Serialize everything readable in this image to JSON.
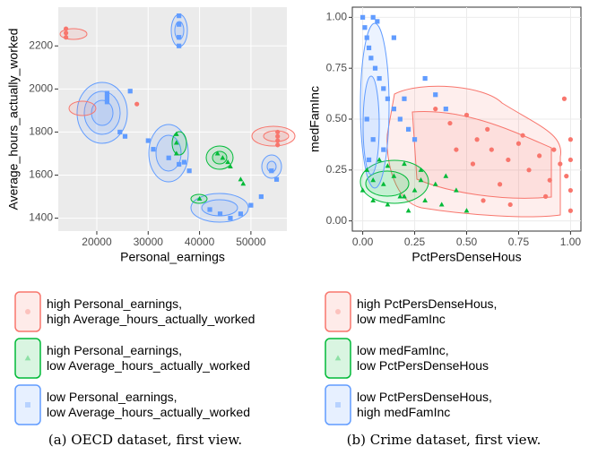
{
  "chart_data": [
    {
      "type": "scatter",
      "xlabel": "Personal_earnings",
      "ylabel": "Average_hours_actually_worked",
      "caption": "(a) OECD dataset, first view.",
      "background": "#ebebeb",
      "grid_color": "#ffffff",
      "grid": true,
      "xlim": [
        12500,
        57000
      ],
      "xticks": [
        20000,
        30000,
        40000,
        50000
      ],
      "ylim": [
        1340,
        2380
      ],
      "yticks": [
        1400,
        1600,
        1800,
        2000,
        2200
      ],
      "series": [
        {
          "name": "high Personal_earnings,\nhigh Average_hours_actually_worked",
          "color": "#f8766d",
          "marker": "circle",
          "x": [
            14000,
            14000,
            14000,
            27800,
            55200,
            55200,
            55200,
            55200
          ],
          "y": [
            2280,
            2260,
            2240,
            1930,
            1800,
            1780,
            1760,
            1740
          ]
        },
        {
          "name": "high Personal_earnings,\nlow Average_hours_actually_worked",
          "color": "#00ba38",
          "marker": "triangle",
          "x": [
            35500,
            35500,
            35500,
            43500,
            44500,
            45500,
            46000,
            48000,
            48500,
            40000
          ],
          "y": [
            1790,
            1750,
            1700,
            1700,
            1680,
            1660,
            1640,
            1580,
            1560,
            1490
          ]
        },
        {
          "name": "low Personal_earnings,\nlow Average_hours_actually_worked",
          "color": "#619cff",
          "marker": "square",
          "x": [
            36000,
            36000,
            36000,
            36000,
            22000,
            22000,
            22000,
            24500,
            25500,
            26500,
            31000,
            34000,
            36000,
            38000,
            42000,
            44000,
            46000,
            48000,
            50000,
            52000,
            54000,
            55000,
            37000,
            30000
          ],
          "y": [
            2340,
            2300,
            2240,
            2200,
            1980,
            1960,
            1940,
            1800,
            1780,
            1990,
            1720,
            1680,
            1650,
            1620,
            1440,
            1420,
            1400,
            1420,
            1460,
            1500,
            1620,
            1580,
            1660,
            1760
          ]
        }
      ]
    },
    {
      "type": "scatter",
      "xlabel": "PctPersDenseHous",
      "ylabel": "medFamInc",
      "caption": "(b) Crime dataset, first view.",
      "background": "#ffffff",
      "grid_color": "#ebebeb",
      "grid": true,
      "xlim": [
        -0.05,
        1.05
      ],
      "xticks": [
        {
          "value": 0,
          "label": "0.00"
        },
        {
          "value": 0.25,
          "label": "0.25"
        },
        {
          "value": 0.5,
          "label": "0.50"
        },
        {
          "value": 0.75,
          "label": "0.75"
        },
        {
          "value": 1,
          "label": "1.00"
        }
      ],
      "ylim": [
        -0.05,
        1.05
      ],
      "yticks": [
        {
          "value": 0,
          "label": "0.00"
        },
        {
          "value": 0.25,
          "label": "0.25"
        },
        {
          "value": 0.5,
          "label": "0.50"
        },
        {
          "value": 0.75,
          "label": "0.75"
        },
        {
          "value": 1,
          "label": "1.00"
        }
      ],
      "series": [
        {
          "name": "high PctPersDenseHous,\nlow medFamInc",
          "color": "#f8766d",
          "marker": "circle",
          "x": [
            0.35,
            0.42,
            0.5,
            0.55,
            0.6,
            0.62,
            0.7,
            0.75,
            0.8,
            0.85,
            0.9,
            0.95,
            1.0,
            1.0,
            1.0,
            1.0,
            0.98,
            0.88,
            0.66,
            0.58,
            0.45,
            0.77,
            0.92,
            0.53,
            0.71,
            0.97
          ],
          "y": [
            0.55,
            0.48,
            0.52,
            0.4,
            0.45,
            0.35,
            0.3,
            0.38,
            0.25,
            0.32,
            0.2,
            0.28,
            0.4,
            0.3,
            0.15,
            0.05,
            0.22,
            0.12,
            0.18,
            0.1,
            0.35,
            0.42,
            0.35,
            0.28,
            0.08,
            0.6
          ]
        },
        {
          "name": "low medFamInc,\nlow PctPersDenseHous",
          "color": "#00ba38",
          "marker": "triangle",
          "x": [
            0.0,
            0.02,
            0.05,
            0.08,
            0.1,
            0.12,
            0.15,
            0.18,
            0.2,
            0.22,
            0.25,
            0.28,
            0.3,
            0.35,
            0.38,
            0.4,
            0.45,
            0.5,
            0.05,
            0.12,
            0.2,
            0.28
          ],
          "y": [
            0.15,
            0.25,
            0.1,
            0.3,
            0.18,
            0.08,
            0.22,
            0.12,
            0.28,
            0.05,
            0.15,
            0.2,
            0.1,
            0.18,
            0.08,
            0.22,
            0.15,
            0.05,
            0.2,
            0.27,
            0.12,
            0.25
          ]
        },
        {
          "name": "low PctPersDenseHous,\nhigh medFamInc",
          "color": "#619cff",
          "marker": "square",
          "x": [
            0.0,
            0.01,
            0.02,
            0.03,
            0.04,
            0.05,
            0.06,
            0.08,
            0.1,
            0.12,
            0.15,
            0.18,
            0.2,
            0.22,
            0.25,
            0.3,
            0.35,
            0.4,
            0.02,
            0.05,
            0.1,
            0.15,
            0.03,
            0.07
          ],
          "y": [
            1.0,
            0.95,
            0.9,
            0.85,
            0.8,
            1.0,
            0.75,
            0.7,
            0.65,
            0.6,
            0.55,
            0.5,
            0.6,
            0.45,
            0.4,
            0.7,
            0.62,
            0.55,
            0.5,
            0.4,
            0.35,
            0.9,
            0.3,
            0.98
          ]
        }
      ]
    }
  ]
}
